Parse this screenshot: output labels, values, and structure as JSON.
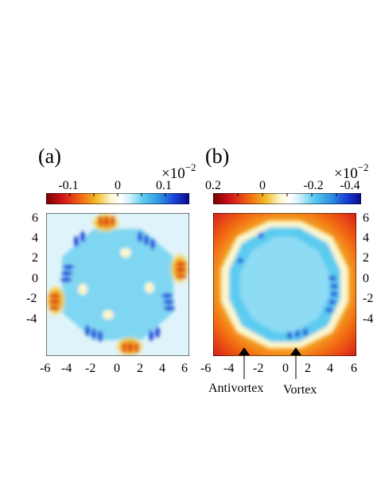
{
  "figure": {
    "panels": [
      {
        "label": "(a)",
        "colorbar": {
          "multiplier_base": "×10",
          "multiplier_exp": "−2",
          "ticks": [
            "-0.1",
            "0",
            "0.1"
          ]
        },
        "x_ticks": [
          "-6",
          "-4",
          "-2",
          "0",
          "2",
          "4",
          "6"
        ],
        "y_ticks": [
          "6",
          "4",
          "2",
          "0",
          "-2",
          "-4"
        ]
      },
      {
        "label": "(b)",
        "colorbar": {
          "multiplier_base": "×10",
          "multiplier_exp": "−2",
          "ticks": [
            "0.2",
            "0",
            "-0.2",
            "-0.4"
          ]
        },
        "x_ticks": [
          "-6",
          "-4",
          "-2",
          "0",
          "2",
          "4",
          "6"
        ],
        "y_ticks": [
          "6",
          "4",
          "2",
          "0",
          "-2",
          "-4"
        ],
        "annotations": [
          "Antivortex",
          "Vortex"
        ]
      }
    ],
    "colors": {
      "colormap": [
        "#7a0000",
        "#d4161a",
        "#f36d12",
        "#f2c12e",
        "#fbf6d0",
        "#ffffff",
        "#d2f2fb",
        "#5ccbf0",
        "#2d8fe0",
        "#1a3fd8",
        "#0a0a8a"
      ]
    }
  }
}
